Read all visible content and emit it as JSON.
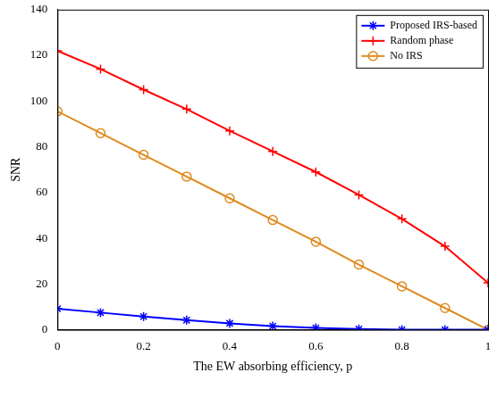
{
  "chart_data": {
    "type": "line",
    "x_label": "The EW absorbing efficiency, p",
    "y_label": "SNR",
    "x": [
      0,
      0.1,
      0.2,
      0.3,
      0.4,
      0.5,
      0.6,
      0.7,
      0.8,
      0.9,
      1
    ],
    "series": [
      {
        "name": "Proposed IRS-based",
        "color": "#0000ff",
        "marker": "star",
        "line_style": "solid",
        "values": [
          9.2,
          7.5,
          5.8,
          4.2,
          2.8,
          1.6,
          0.8,
          0.3,
          0,
          0,
          0
        ]
      },
      {
        "name": "Random phase",
        "color": "#ff0000",
        "marker": "cross",
        "line_style": "solid",
        "values": [
          122,
          114,
          105,
          96.5,
          87,
          78,
          69,
          59,
          48.5,
          36.5,
          20.5
        ]
      },
      {
        "name": "No IRS",
        "color": "#e08a1e",
        "marker": "circle",
        "line_style": "solid",
        "values": [
          95.5,
          86,
          76.5,
          67,
          57.5,
          48,
          38.5,
          28.5,
          19,
          9.5,
          0
        ]
      }
    ],
    "xlim": [
      0,
      1
    ],
    "xticks": [
      0,
      0.2,
      0.4,
      0.6,
      0.8,
      1
    ],
    "ylim": [
      0,
      140
    ],
    "yticks": [
      0,
      20,
      40,
      60,
      80,
      100,
      120,
      140
    ],
    "grid": false,
    "legend": "top-right"
  }
}
